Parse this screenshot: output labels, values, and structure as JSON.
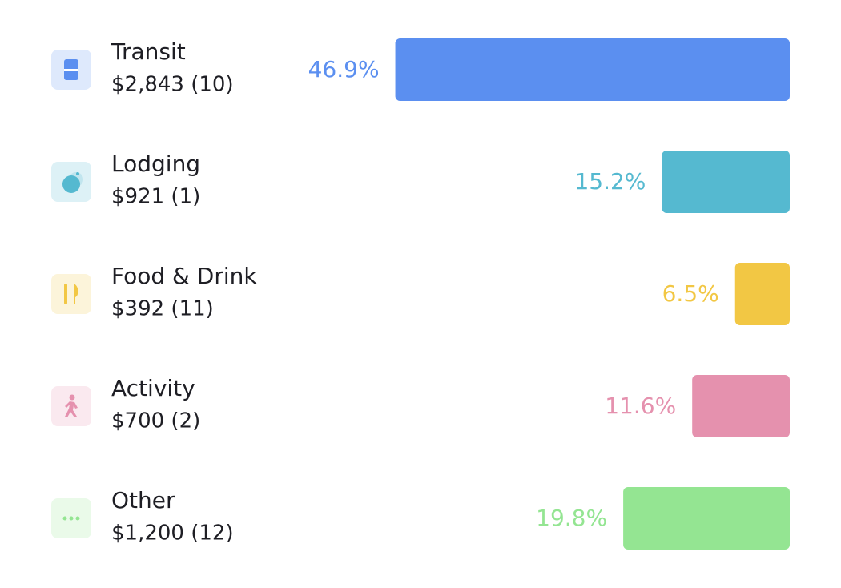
{
  "rows": [
    {
      "name": "Transit",
      "detail": "$2,843 (10)",
      "percent": 46.9,
      "percent_label": "46.9%",
      "color": "#5b8ff0"
    },
    {
      "name": "Lodging",
      "detail": "$921 (1)",
      "percent": 15.2,
      "percent_label": "15.2%",
      "color": "#55b9d0"
    },
    {
      "name": "Food & Drink",
      "detail": "$392 (11)",
      "percent": 6.5,
      "percent_label": "6.5%",
      "color": "#f2c744"
    },
    {
      "name": "Activity",
      "detail": "$700 (2)",
      "percent": 11.6,
      "percent_label": "11.6%",
      "color": "#e591ae"
    },
    {
      "name": "Other",
      "detail": "$1,200 (12)",
      "percent": 19.8,
      "percent_label": "19.8%",
      "color": "#94e592"
    }
  ]
}
